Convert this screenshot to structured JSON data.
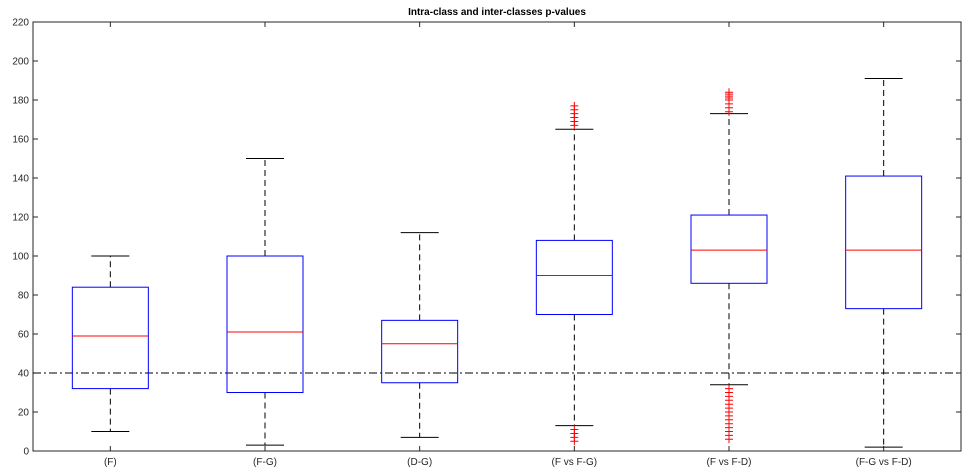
{
  "chart_data": {
    "type": "box",
    "title": "Intra-class and inter-classes p-values",
    "xlabel": "",
    "ylabel": "",
    "ylim": [
      0,
      220
    ],
    "yticks": [
      0,
      20,
      40,
      60,
      80,
      100,
      120,
      140,
      160,
      180,
      200,
      220
    ],
    "grid": false,
    "reference_line": {
      "y": 40,
      "style": "dash-dot",
      "color": "#000000"
    },
    "colors": {
      "box": "#0000ff",
      "median": "#ff0000",
      "whisker": "#000000",
      "outlier": "#ff0000"
    },
    "categories": [
      "(F)",
      "(F-G)",
      "(D-G)",
      "(F vs F-G)",
      "(F vs F-D)",
      "(F-G vs F-D)"
    ],
    "boxes": [
      {
        "label": "(F)",
        "whisker_low": 10,
        "q1": 32,
        "median": 59,
        "q3": 84,
        "whisker_high": 100,
        "outliers": []
      },
      {
        "label": "(F-G)",
        "whisker_low": 3,
        "q1": 30,
        "median": 61,
        "q3": 100,
        "whisker_high": 150,
        "outliers": []
      },
      {
        "label": "(D-G)",
        "whisker_low": 7,
        "q1": 35,
        "median": 55,
        "q3": 67,
        "whisker_high": 112,
        "outliers": []
      },
      {
        "label": "(F vs F-G)",
        "whisker_low": 13,
        "q1": 70,
        "median": 90,
        "q3": 108,
        "whisker_high": 165,
        "outliers": [
          5,
          7,
          9,
          11,
          167,
          169,
          171,
          173,
          175,
          177
        ]
      },
      {
        "label": "(F vs F-D)",
        "whisker_low": 34,
        "q1": 86,
        "median": 103,
        "q3": 121,
        "whisker_high": 173,
        "outliers": [
          6,
          8,
          10,
          12,
          14,
          16,
          18,
          20,
          22,
          24,
          26,
          28,
          30,
          32,
          174,
          176,
          178,
          180,
          181,
          182,
          183,
          184
        ]
      },
      {
        "label": "(F-G vs F-D)",
        "whisker_low": 2,
        "q1": 73,
        "median": 103,
        "q3": 141,
        "whisker_high": 191,
        "outliers": []
      }
    ]
  }
}
